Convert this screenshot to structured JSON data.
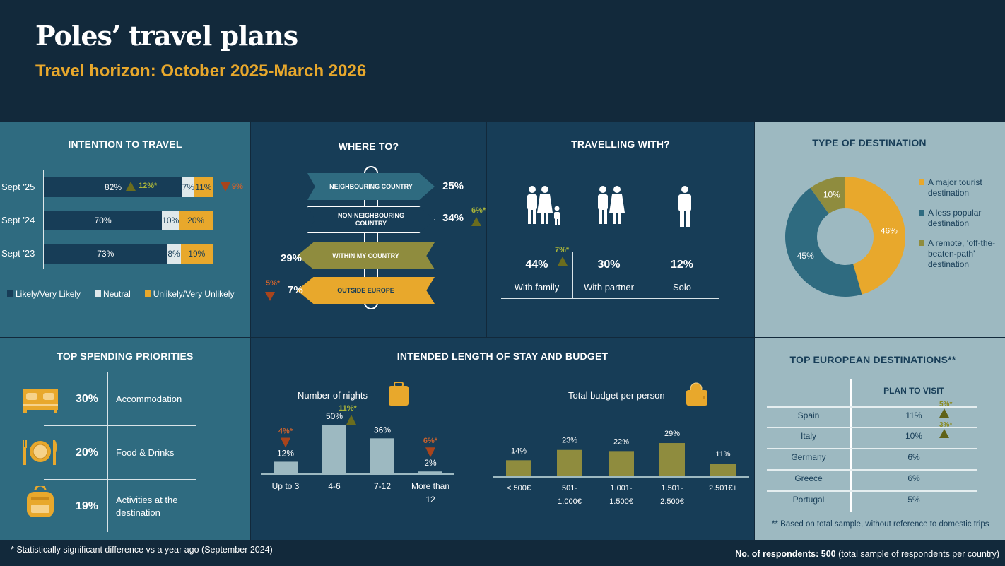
{
  "header": {
    "title": "Poles’ travel plans",
    "subtitle": "Travel horizon: October 2025-March 2026"
  },
  "colors": {
    "header_bg": "#12293b",
    "accent": "#e8a82c",
    "teal": "#2f6b80",
    "navy": "#173d57",
    "light": "#9db9c1",
    "olive": "#8f8c3e",
    "increase": "#a9b43a",
    "decrease": "#c9622e"
  },
  "chart_data": [
    {
      "type": "bar",
      "title": "INTENTION  TO TRAVEL",
      "orientation": "horizontal",
      "stacked": true,
      "categories": [
        "Sept '25",
        "Sept '24",
        "Sept '23"
      ],
      "series": [
        {
          "name": "Likely/Very Likely",
          "values": [
            82,
            70,
            73
          ],
          "color": "#173d57"
        },
        {
          "name": "Neutral",
          "values": [
            7,
            10,
            8
          ],
          "color": "#dfe8ea"
        },
        {
          "name": "Unlikely/Very Unlikely",
          "values": [
            11,
            20,
            19
          ],
          "color": "#e8a82c"
        }
      ],
      "value_labels": [
        [
          "82%",
          "7%",
          "11%"
        ],
        [
          "70%",
          "10%",
          "20%"
        ],
        [
          "73%",
          "8%",
          "19%"
        ]
      ],
      "changes": {
        "likely": "12%*",
        "unlikely": "9%"
      },
      "legend": "bottom"
    },
    {
      "type": "table",
      "title": "WHERE TO?",
      "items": [
        {
          "label": "NEIGHBOURING COUNTRY",
          "value": "25%"
        },
        {
          "label": "NON-NEIGHBOURING COUNTRY",
          "value": "34%",
          "change": "6%*",
          "direction": "up"
        },
        {
          "label": "WITHIN MY COUNTRY",
          "value": "29%"
        },
        {
          "label": "OUTSIDE EUROPE",
          "value": "7%",
          "change": "5%*",
          "direction": "down"
        }
      ]
    },
    {
      "type": "table",
      "title": "TRAVELLING WITH?",
      "items": [
        {
          "label": "With family",
          "value": "44%",
          "change": "7%*",
          "direction": "up",
          "icon": "family-icon"
        },
        {
          "label": "With partner",
          "value": "30%",
          "icon": "couple-icon"
        },
        {
          "label": "Solo",
          "value": "12%",
          "icon": "person-icon"
        }
      ]
    },
    {
      "type": "pie",
      "title": "TYPE OF DESTINATION",
      "donut": true,
      "slices": [
        {
          "name": "A major tourist destination",
          "value": 46,
          "label": "46%",
          "color": "#e8a82c"
        },
        {
          "name": "A less popular destination",
          "value": 45,
          "label": "45%",
          "color": "#2f6b80"
        },
        {
          "name": "A remote, ‘off-the-beaten-path’ destination",
          "value": 10,
          "label": "10%",
          "color": "#8f8c3e"
        }
      ],
      "legend": "right"
    },
    {
      "type": "table",
      "title": "TOP SPENDING PRIORITIES",
      "items": [
        {
          "label": "Accommodation",
          "value": "30%",
          "icon": "bed-icon"
        },
        {
          "label": "Food & Drinks",
          "value": "20%",
          "icon": "plate-cutlery-icon"
        },
        {
          "label": "Activities at the destination",
          "value": "19%",
          "icon": "backpack-icon"
        }
      ]
    },
    {
      "type": "bar",
      "title": "INTENDED LENGTH OF STAY AND BUDGET",
      "subtitle": "Number of nights",
      "categories": [
        "Up to 3",
        "4-6",
        "7-12",
        "More than 12"
      ],
      "values": [
        12,
        50,
        36,
        2
      ],
      "value_labels": [
        "12%",
        "50%",
        "36%",
        "2%"
      ],
      "changes": [
        {
          "text": "4%*",
          "direction": "down"
        },
        {
          "text": "11%*",
          "direction": "up"
        },
        null,
        {
          "text": "6%*",
          "direction": "down"
        }
      ],
      "color": "#9db9c1"
    },
    {
      "type": "bar",
      "subtitle": "Total budget per person",
      "categories": [
        "< 500€",
        "501-1.000€",
        "1.001-1.500€",
        "1.501-2.500€",
        "2.501€+"
      ],
      "values": [
        14,
        23,
        22,
        29,
        11
      ],
      "value_labels": [
        "14%",
        "23%",
        "22%",
        "29%",
        "11%"
      ],
      "color": "#8f8c3e"
    },
    {
      "type": "table",
      "title": "TOP EUROPEAN DESTINATIONS**",
      "column": "PLAN TO VISIT",
      "rows": [
        {
          "country": "Spain",
          "value": "11%",
          "change": "5%*"
        },
        {
          "country": "Italy",
          "value": "10%",
          "change": "3%*"
        },
        {
          "country": "Germany",
          "value": "6%"
        },
        {
          "country": "Greece",
          "value": "6%"
        },
        {
          "country": "Portugal",
          "value": "5%"
        }
      ],
      "note": "** Based on total sample, without reference to domestic trips"
    }
  ],
  "footer": {
    "note": "* Statistically significant difference vs a year ago (September 2024)",
    "respondents_label": "No. of respondents:",
    "respondents_value": "500",
    "respondents_suffix": "(total sample of respondents per country)"
  }
}
